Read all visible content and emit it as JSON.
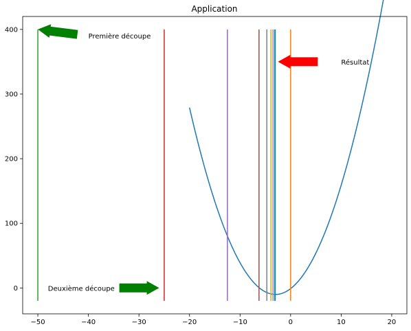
{
  "chart_data": {
    "type": "line",
    "title": "Application",
    "xlabel": "",
    "ylabel": "",
    "xlim": [
      -53,
      23
    ],
    "ylim": [
      -40,
      420
    ],
    "grid": false,
    "xticks": [
      -50,
      -40,
      -30,
      -20,
      -10,
      0,
      10,
      20
    ],
    "xtick_labels": [
      "−50",
      "−40",
      "−30",
      "−20",
      "−10",
      "0",
      "10",
      "20"
    ],
    "yticks": [
      0,
      100,
      200,
      300,
      400
    ],
    "ytick_labels": [
      "0",
      "100",
      "200",
      "300",
      "400"
    ],
    "series": [
      {
        "kind": "curve",
        "color": "#1f77b4",
        "formula": "(x + 3)^2 - 10",
        "x_range": [
          -20,
          20
        ]
      }
    ],
    "vlines": [
      {
        "x": 0,
        "color": "#ff7f0e",
        "y_range": [
          -20,
          400
        ]
      },
      {
        "x": -50,
        "color": "#2ca02c",
        "y_range": [
          -20,
          400
        ]
      },
      {
        "x": -25,
        "color": "#d62728",
        "y_range": [
          -20,
          400
        ]
      },
      {
        "x": -12.5,
        "color": "#9467bd",
        "y_range": [
          -20,
          400
        ]
      },
      {
        "x": -6.25,
        "color": "#8c564b",
        "y_range": [
          -20,
          400
        ]
      },
      {
        "x": -4.7,
        "color": "#7f7f7f",
        "y_range": [
          -20,
          400
        ]
      },
      {
        "x": -3.9,
        "color": "#bcbd22",
        "y_range": [
          -20,
          400
        ]
      },
      {
        "x": -3.5,
        "color": "#e377c2",
        "y_range": [
          -20,
          400
        ]
      },
      {
        "x": -3.2,
        "color": "#17becf",
        "y_range": [
          -20,
          400
        ]
      },
      {
        "x": -3.05,
        "color": "#1f77b4",
        "y_range": [
          -20,
          400
        ]
      }
    ],
    "annotations": [
      {
        "text": "Première découpe",
        "text_xy": [
          -40,
          390
        ],
        "arrow_tip": [
          -50,
          400
        ],
        "arrow_color": "#008000"
      },
      {
        "text": "Deuxième découpe",
        "text_xy": [
          -48,
          0
        ],
        "arrow_tip": [
          -26,
          0
        ],
        "arrow_color": "#008000"
      },
      {
        "text": "Résultat",
        "text_xy": [
          10,
          350
        ],
        "arrow_tip": [
          -2.5,
          350
        ],
        "arrow_color": "#ff0000"
      }
    ]
  }
}
